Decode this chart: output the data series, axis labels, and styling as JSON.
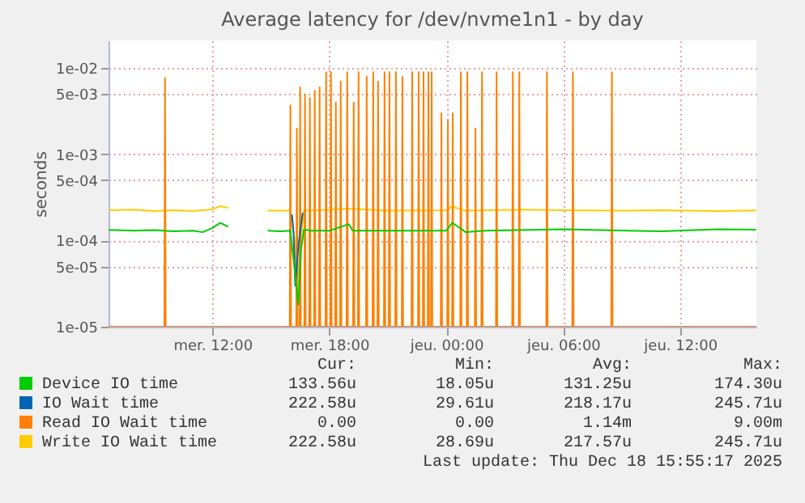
{
  "chart_data": {
    "type": "line",
    "title": "Average latency for /dev/nvme1n1 - by day",
    "ylabel": "seconds",
    "xlim": [
      "2025-12-17T06:40",
      "2025-12-18T15:55"
    ],
    "xticks": [
      {
        "value": "2025-12-17T12:00",
        "label": "mer. 12:00"
      },
      {
        "value": "2025-12-17T18:00",
        "label": "mer. 18:00"
      },
      {
        "value": "2025-12-18T00:00",
        "label": "jeu. 00:00"
      },
      {
        "value": "2025-12-18T06:00",
        "label": "jeu. 06:00"
      },
      {
        "value": "2025-12-18T12:00",
        "label": "jeu. 12:00"
      }
    ],
    "ylim": [
      1e-05,
      0.021
    ],
    "yticks": [
      {
        "value": 1e-05,
        "label": "1e-05"
      },
      {
        "value": 5e-05,
        "label": "5e-05"
      },
      {
        "value": 0.0001,
        "label": "1e-04"
      },
      {
        "value": 0.0005,
        "label": "5e-04"
      },
      {
        "value": 0.001,
        "label": "1e-03"
      },
      {
        "value": 0.005,
        "label": "5e-03"
      },
      {
        "value": 0.01,
        "label": "1e-02"
      }
    ],
    "log": "y",
    "grid": true,
    "legend": "bottom",
    "series": [
      {
        "name": "Device IO time",
        "color": "#00cc00",
        "x": [
          "2025-12-17T06:40",
          "2025-12-17T08:00",
          "2025-12-17T09:00",
          "2025-12-17T10:00",
          "2025-12-17T11:00",
          "2025-12-17T11:30",
          "2025-12-17T12:00",
          "2025-12-17T12:24",
          "2025-12-17T12:48",
          "2025-12-17T12:54",
          "2025-12-17T14:50",
          "2025-12-17T15:30",
          "2025-12-17T16:00",
          "2025-12-17T16:12",
          "2025-12-17T16:24",
          "2025-12-17T16:33",
          "2025-12-17T16:42",
          "2025-12-17T17:00",
          "2025-12-17T18:00",
          "2025-12-17T19:00",
          "2025-12-17T19:12",
          "2025-12-17T21:00",
          "2025-12-18T00:00",
          "2025-12-18T00:18",
          "2025-12-18T00:36",
          "2025-12-18T01:00",
          "2025-12-18T02:00",
          "2025-12-18T06:00",
          "2025-12-18T11:00",
          "2025-12-18T14:00",
          "2025-12-18T15:54"
        ],
        "values": [
          0.000133,
          0.00013,
          0.000132,
          0.000128,
          0.00013,
          0.000125,
          0.00014,
          0.00016,
          0.000145,
          null,
          0.00013,
          0.000128,
          0.00013,
          5e-05,
          1.8e-05,
          8e-05,
          0.000135,
          0.00013,
          0.00013,
          0.000155,
          0.00013,
          0.00013,
          0.00013,
          0.00016,
          0.000145,
          0.000125,
          0.00013,
          0.000135,
          0.000128,
          0.000135,
          0.000134
        ]
      },
      {
        "name": "IO Wait time",
        "color": "#0066b3",
        "x": [
          "2025-12-17T16:05",
          "2025-12-17T16:10",
          "2025-12-17T16:15",
          "2025-12-17T16:25",
          "2025-12-17T16:38"
        ],
        "values": [
          0.0002,
          0.00012,
          3e-05,
          9e-05,
          0.00021
        ]
      },
      {
        "name": "Read IO Wait time",
        "color": "#ff8000",
        "x": [
          "2025-12-17T06:40",
          "2025-12-17T09:32",
          "2025-12-17T09:34",
          "2025-12-17T09:36",
          "2025-12-17T15:58",
          "2025-12-17T16:00",
          "2025-12-17T16:02",
          "2025-12-17T16:18",
          "2025-12-17T16:20",
          "2025-12-17T16:22",
          "2025-12-17T16:28",
          "2025-12-17T16:30",
          "2025-12-17T16:32",
          "2025-12-17T16:43",
          "2025-12-17T16:45",
          "2025-12-17T16:47",
          "2025-12-17T16:58",
          "2025-12-17T17:00",
          "2025-12-17T17:02",
          "2025-12-17T17:13",
          "2025-12-17T17:15",
          "2025-12-17T17:17",
          "2025-12-17T17:28",
          "2025-12-17T17:30",
          "2025-12-17T17:32",
          "2025-12-17T17:48",
          "2025-12-17T17:50",
          "2025-12-17T17:52",
          "2025-12-17T18:03",
          "2025-12-17T18:05",
          "2025-12-17T18:07",
          "2025-12-17T18:18",
          "2025-12-17T18:20",
          "2025-12-17T18:22",
          "2025-12-17T18:33",
          "2025-12-17T18:35",
          "2025-12-17T18:37",
          "2025-12-17T18:53",
          "2025-12-17T18:55",
          "2025-12-17T18:57",
          "2025-12-17T19:13",
          "2025-12-17T19:15",
          "2025-12-17T19:17",
          "2025-12-17T19:28",
          "2025-12-17T19:30",
          "2025-12-17T19:32",
          "2025-12-17T19:53",
          "2025-12-17T19:55",
          "2025-12-17T19:57",
          "2025-12-17T20:13",
          "2025-12-17T20:15",
          "2025-12-17T20:17",
          "2025-12-17T20:28",
          "2025-12-17T20:30",
          "2025-12-17T20:32",
          "2025-12-17T20:48",
          "2025-12-17T20:50",
          "2025-12-17T20:52",
          "2025-12-17T21:03",
          "2025-12-17T21:05",
          "2025-12-17T21:07",
          "2025-12-17T21:23",
          "2025-12-17T21:25",
          "2025-12-17T21:27",
          "2025-12-17T21:43",
          "2025-12-17T21:45",
          "2025-12-17T21:47",
          "2025-12-17T22:13",
          "2025-12-17T22:15",
          "2025-12-17T22:17",
          "2025-12-17T22:33",
          "2025-12-17T22:35",
          "2025-12-17T22:37",
          "2025-12-17T22:48",
          "2025-12-17T22:50",
          "2025-12-17T22:52",
          "2025-12-17T23:03",
          "2025-12-17T23:05",
          "2025-12-17T23:07",
          "2025-12-17T23:13",
          "2025-12-17T23:15",
          "2025-12-17T23:17",
          "2025-12-17T23:43",
          "2025-12-17T23:45",
          "2025-12-17T23:47",
          "2025-12-18T00:03",
          "2025-12-18T00:05",
          "2025-12-18T00:07",
          "2025-12-18T00:18",
          "2025-12-18T00:20",
          "2025-12-18T00:22",
          "2025-12-18T00:43",
          "2025-12-18T00:45",
          "2025-12-18T00:47",
          "2025-12-18T01:03",
          "2025-12-18T01:05",
          "2025-12-18T01:07",
          "2025-12-18T01:28",
          "2025-12-18T01:30",
          "2025-12-18T01:32",
          "2025-12-18T01:48",
          "2025-12-18T01:50",
          "2025-12-18T01:52",
          "2025-12-18T02:33",
          "2025-12-18T02:35",
          "2025-12-18T02:37",
          "2025-12-18T03:23",
          "2025-12-18T03:25",
          "2025-12-18T03:27",
          "2025-12-18T03:43",
          "2025-12-18T03:45",
          "2025-12-18T03:47",
          "2025-12-18T05:08",
          "2025-12-18T05:10",
          "2025-12-18T05:12",
          "2025-12-18T06:28",
          "2025-12-18T06:30",
          "2025-12-18T06:32",
          "2025-12-18T08:28",
          "2025-12-18T08:30",
          "2025-12-18T08:32",
          "2025-12-18T15:54"
        ],
        "values": [
          1e-05,
          1e-05,
          0.0077,
          1e-05,
          1e-05,
          0.0037,
          1e-05,
          1e-05,
          0.002,
          1e-05,
          1e-05,
          0.006,
          1e-05,
          1e-05,
          0.005,
          1e-05,
          1e-05,
          0.0045,
          1e-05,
          1e-05,
          0.0055,
          1e-05,
          1e-05,
          0.006,
          1e-05,
          1e-05,
          0.009,
          1e-05,
          1e-05,
          0.009,
          1e-05,
          1e-05,
          0.004,
          1e-05,
          1e-05,
          0.007,
          1e-05,
          1e-05,
          0.009,
          1e-05,
          1e-05,
          0.004,
          1e-05,
          1e-05,
          0.009,
          1e-05,
          1e-05,
          0.008,
          1e-05,
          1e-05,
          0.009,
          1e-05,
          1e-05,
          0.007,
          1e-05,
          1e-05,
          0.009,
          1e-05,
          1e-05,
          0.009,
          1e-05,
          1e-05,
          0.009,
          1e-05,
          1e-05,
          0.008,
          1e-05,
          1e-05,
          0.009,
          1e-05,
          1e-05,
          0.009,
          1e-05,
          1e-05,
          0.009,
          1e-05,
          1e-05,
          0.009,
          1e-05,
          1e-05,
          0.009,
          1e-05,
          1e-05,
          0.003,
          1e-05,
          1e-05,
          0.0025,
          1e-05,
          1e-05,
          0.003,
          1e-05,
          1e-05,
          0.009,
          1e-05,
          1e-05,
          0.009,
          1e-05,
          1e-05,
          0.002,
          1e-05,
          1e-05,
          0.009,
          1e-05,
          1e-05,
          0.009,
          1e-05,
          1e-05,
          0.009,
          1e-05,
          1e-05,
          0.009,
          1e-05,
          1e-05,
          0.009,
          1e-05,
          1e-05,
          0.009,
          1e-05,
          1e-05,
          0.009,
          1e-05,
          1e-05
        ]
      },
      {
        "name": "Write IO Wait time",
        "color": "#ffcc00",
        "x": [
          "2025-12-17T06:40",
          "2025-12-17T08:00",
          "2025-12-17T09:00",
          "2025-12-17T10:00",
          "2025-12-17T11:00",
          "2025-12-17T12:00",
          "2025-12-17T12:24",
          "2025-12-17T12:48",
          "2025-12-17T12:54",
          "2025-12-17T14:50",
          "2025-12-17T16:00",
          "2025-12-17T16:12",
          "2025-12-17T16:21",
          "2025-12-17T16:30",
          "2025-12-17T16:42",
          "2025-12-17T17:00",
          "2025-12-17T19:00",
          "2025-12-17T21:00",
          "2025-12-18T00:00",
          "2025-12-18T00:18",
          "2025-12-18T00:36",
          "2025-12-18T01:00",
          "2025-12-18T04:00",
          "2025-12-18T06:00",
          "2025-12-18T09:00",
          "2025-12-18T11:00",
          "2025-12-18T14:00",
          "2025-12-18T15:54"
        ],
        "values": [
          0.000225,
          0.000228,
          0.00022,
          0.000225,
          0.00022,
          0.00023,
          0.00025,
          0.00024,
          null,
          0.000222,
          0.000222,
          0.00011,
          3e-05,
          8e-05,
          0.000225,
          0.000222,
          0.000235,
          0.000222,
          0.000225,
          0.00025,
          0.000235,
          0.000222,
          0.000228,
          0.000225,
          0.000222,
          0.000225,
          0.00022,
          0.000223
        ]
      }
    ],
    "annotations": [
      "Cur:",
      "Min:",
      "Avg:",
      "Max:",
      "133.56u",
      "18.05u",
      "131.25u",
      "174.30u",
      "222.58u",
      "29.61u",
      "218.17u",
      "245.71u",
      "0.00",
      "0.00",
      "1.14m",
      "9.00m",
      "222.58u",
      "28.69u",
      "217.57u",
      "245.71u",
      "Last update: Thu Dec 18 15:55:17 2025"
    ]
  }
}
